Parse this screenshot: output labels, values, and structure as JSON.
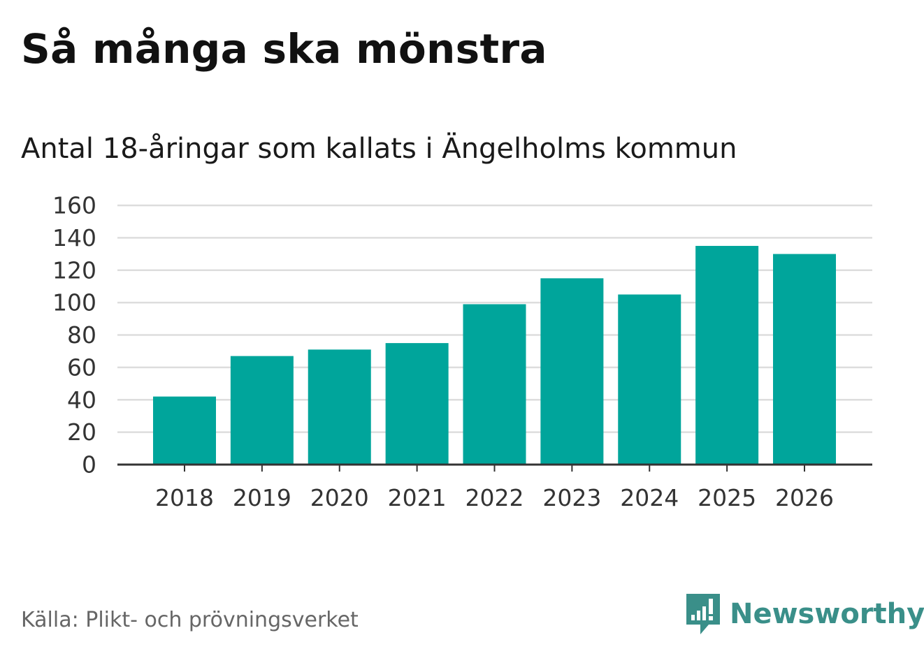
{
  "title": "Så många ska mönstra",
  "subtitle": "Antal 18-åringar som kallats i Ängelholms kommun",
  "source": "Källa: Plikt- och prövningsverket",
  "brand": {
    "name": "Newsworthy",
    "icon": "newsworthy-logo-icon",
    "color": "#3a8f89"
  },
  "chart_data": {
    "type": "bar",
    "title": "Så många ska mönstra",
    "subtitle": "Antal 18-åringar som kallats i Ängelholms kommun",
    "xlabel": "",
    "ylabel": "",
    "categories": [
      "2018",
      "2019",
      "2020",
      "2021",
      "2022",
      "2023",
      "2024",
      "2025",
      "2026"
    ],
    "values": [
      42,
      67,
      71,
      75,
      99,
      115,
      105,
      135,
      130
    ],
    "ylim": [
      0,
      160
    ],
    "yticks": [
      0,
      20,
      40,
      60,
      80,
      100,
      120,
      140,
      160
    ],
    "grid": true,
    "legend": "none",
    "bar_color": "#00a59b",
    "grid_color": "#dddddd",
    "axis_color": "#333333"
  }
}
